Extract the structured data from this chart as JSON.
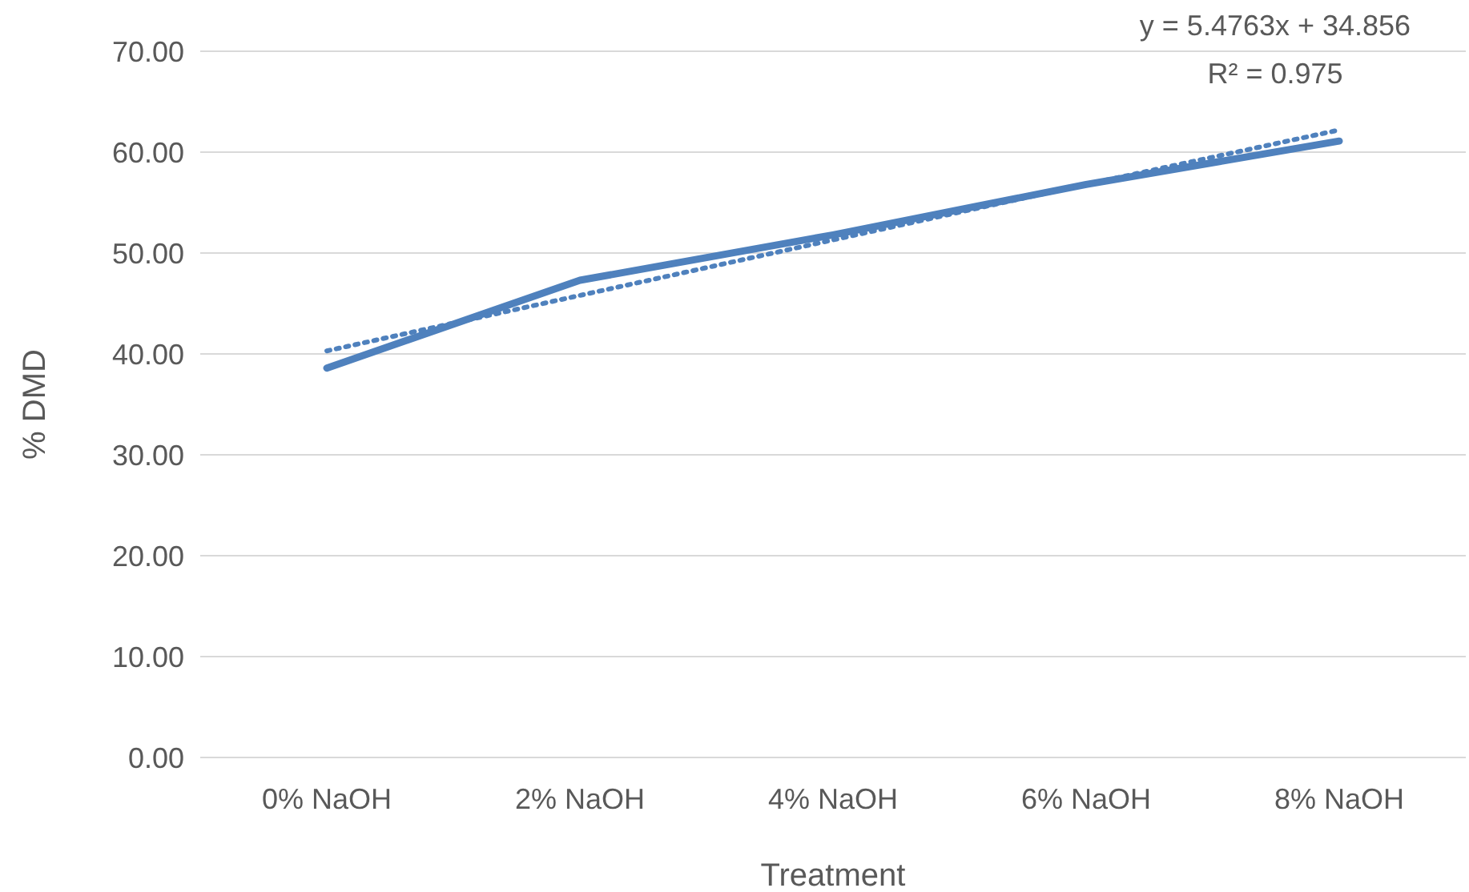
{
  "chart_data": {
    "type": "line",
    "xlabel": "Treatment",
    "ylabel": "% DMD",
    "categories": [
      "0% NaOH",
      "2% NaOH",
      "4% NaOH",
      "6% NaOH",
      "8% NaOH"
    ],
    "series": [
      {
        "color": "#4f81bd",
        "values": [
          38.6,
          47.3,
          51.8,
          56.8,
          61.1
        ],
        "line_style": "solid"
      },
      {
        "type": "line",
        "color": "#4f81bd",
        "values": [
          40.3,
          45.8,
          51.3,
          56.8,
          62.2
        ],
        "line_style": "dotted"
      }
    ],
    "ylim": [
      0,
      70
    ],
    "yticks": [
      {
        "value": 0,
        "label": "0.00"
      },
      {
        "value": 10,
        "label": "10.00"
      },
      {
        "value": 20,
        "label": "20.00"
      },
      {
        "value": 30,
        "label": "30.00"
      },
      {
        "value": 40,
        "label": "40.00"
      },
      {
        "value": 50,
        "label": "50.00"
      },
      {
        "value": 60,
        "label": "60.00"
      },
      {
        "value": 70,
        "label": "70.00"
      }
    ],
    "grid": "y",
    "marker": "none",
    "annotations": [
      "y = 5.4763x + 34.856",
      "R² = 0.975"
    ]
  }
}
